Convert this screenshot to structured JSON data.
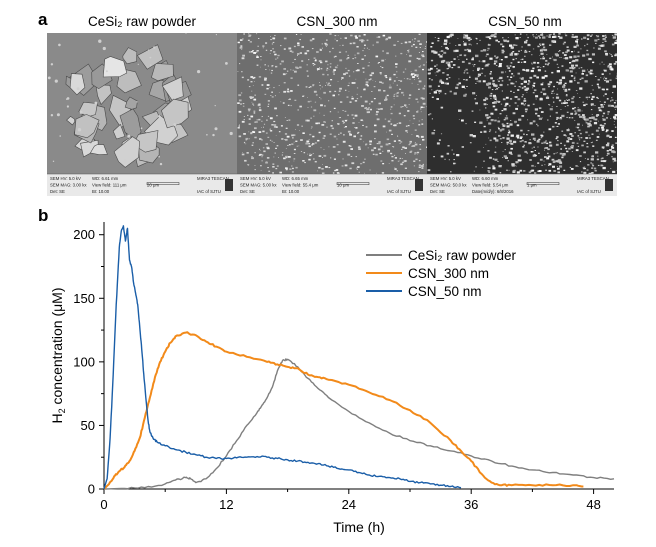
{
  "panel_a": {
    "label": "a",
    "images": [
      {
        "title": "CeSi₂ raw powder",
        "info_rows": [
          [
            "SEM HV: 5.0 kV",
            "WD: 6.61 mm",
            "",
            "MIRA3 TESCAN"
          ],
          [
            "SEM MAG: 3.00 kx",
            "View field: 111 μm",
            "20 μm",
            ""
          ],
          [
            "Det: SE",
            "BI: 10.00",
            "",
            "IAC of SJTU"
          ]
        ]
      },
      {
        "title": "CSN_300 nm",
        "info_rows": [
          [
            "SEM HV: 5.0 kV",
            "WD: 6.65 mm",
            "",
            "MIRA3 TESCAN"
          ],
          [
            "SEM MAG: 5.00 kx",
            "View field: 55.4 μm",
            "10 μm",
            ""
          ],
          [
            "Det: SE",
            "BI: 10.00",
            "",
            "IAC of SJTU"
          ]
        ]
      },
      {
        "title": "CSN_50 nm",
        "info_rows": [
          [
            "SEM HV: 5.0 kV",
            "WD: 6.60 mm",
            "",
            "MIRA3 TESCAN"
          ],
          [
            "SEM MAG: 50.0 kx",
            "View field: 5.54 μm",
            "1 μm",
            ""
          ],
          [
            "Det: SE",
            "Date(m/d/y): 6/8/2016",
            "",
            "IAC of SJTU"
          ]
        ]
      }
    ]
  },
  "panel_b": {
    "label": "b"
  },
  "chart_data": {
    "type": "line",
    "xlabel": "Time (h)",
    "ylabel_parts": [
      "H",
      "2",
      " concentration (μM)"
    ],
    "xlim": [
      0,
      50
    ],
    "ylim": [
      0,
      210
    ],
    "xticks": [
      0,
      12,
      24,
      36,
      48
    ],
    "yticks": [
      0,
      50,
      100,
      150,
      200
    ],
    "legend_position": "top-right",
    "grid": false,
    "series": [
      {
        "name": "CeSi₂ raw powder",
        "color": "#7f7f7f",
        "points": [
          [
            0,
            0
          ],
          [
            2,
            0.5
          ],
          [
            4,
            1
          ],
          [
            6,
            4
          ],
          [
            7,
            7
          ],
          [
            8,
            9
          ],
          [
            8.5,
            8
          ],
          [
            9,
            5
          ],
          [
            10,
            8
          ],
          [
            11,
            16
          ],
          [
            12,
            26
          ],
          [
            13,
            38
          ],
          [
            14,
            50
          ],
          [
            15,
            60
          ],
          [
            15.5,
            66
          ],
          [
            16,
            72
          ],
          [
            16.5,
            80
          ],
          [
            17,
            93
          ],
          [
            17.5,
            101
          ],
          [
            18,
            102
          ],
          [
            19,
            96
          ],
          [
            20,
            87
          ],
          [
            21,
            79
          ],
          [
            22,
            72
          ],
          [
            24,
            61
          ],
          [
            26,
            52
          ],
          [
            28,
            44
          ],
          [
            30,
            38
          ],
          [
            32,
            34
          ],
          [
            34,
            30
          ],
          [
            36,
            26
          ],
          [
            38,
            22
          ],
          [
            40,
            18
          ],
          [
            42,
            15
          ],
          [
            44,
            13
          ],
          [
            46,
            11
          ],
          [
            48,
            9
          ],
          [
            50,
            8
          ]
        ]
      },
      {
        "name": "CSN_300 nm",
        "color": "#f28a1a",
        "points": [
          [
            0,
            0
          ],
          [
            0.5,
            4
          ],
          [
            1,
            10
          ],
          [
            1.5,
            14
          ],
          [
            2,
            17
          ],
          [
            2.5,
            22
          ],
          [
            3,
            30
          ],
          [
            3.5,
            40
          ],
          [
            4,
            56
          ],
          [
            4.5,
            72
          ],
          [
            5,
            88
          ],
          [
            5.5,
            100
          ],
          [
            6,
            108
          ],
          [
            6.5,
            115
          ],
          [
            7,
            120
          ],
          [
            8,
            123
          ],
          [
            9,
            121
          ],
          [
            10,
            116
          ],
          [
            11,
            112
          ],
          [
            12,
            108
          ],
          [
            14,
            104
          ],
          [
            16,
            100
          ],
          [
            17,
            98
          ],
          [
            18,
            96
          ],
          [
            19,
            95
          ],
          [
            20,
            90
          ],
          [
            21,
            88
          ],
          [
            22,
            86
          ],
          [
            24,
            82
          ],
          [
            26,
            76
          ],
          [
            28,
            70
          ],
          [
            30,
            62
          ],
          [
            32,
            52
          ],
          [
            34,
            38
          ],
          [
            35,
            30
          ],
          [
            36,
            22
          ],
          [
            37,
            12
          ],
          [
            38,
            5
          ],
          [
            39,
            3
          ],
          [
            40,
            3
          ],
          [
            42,
            3
          ],
          [
            44,
            3
          ],
          [
            46,
            3
          ],
          [
            47,
            2
          ]
        ]
      },
      {
        "name": "CSN_50 nm",
        "color": "#1a5ea8",
        "points": [
          [
            0,
            0
          ],
          [
            0.3,
            8
          ],
          [
            0.6,
            40
          ],
          [
            0.9,
            90
          ],
          [
            1.2,
            145
          ],
          [
            1.5,
            190
          ],
          [
            1.7,
            203
          ],
          [
            1.9,
            207
          ],
          [
            2.1,
            195
          ],
          [
            2.3,
            205
          ],
          [
            2.5,
            180
          ],
          [
            2.7,
            175
          ],
          [
            2.9,
            162
          ],
          [
            3.1,
            154
          ],
          [
            3.3,
            145
          ],
          [
            3.5,
            128
          ],
          [
            3.7,
            110
          ],
          [
            3.9,
            90
          ],
          [
            4.1,
            72
          ],
          [
            4.3,
            55
          ],
          [
            4.5,
            45
          ],
          [
            4.8,
            40
          ],
          [
            5.2,
            37
          ],
          [
            6,
            34
          ],
          [
            7,
            31
          ],
          [
            8,
            29
          ],
          [
            9,
            27
          ],
          [
            10,
            25
          ],
          [
            11,
            24
          ],
          [
            12,
            24
          ],
          [
            13,
            24.5
          ],
          [
            14,
            25
          ],
          [
            15,
            25.5
          ],
          [
            16,
            25
          ],
          [
            17,
            24
          ],
          [
            18,
            23
          ],
          [
            19,
            22
          ],
          [
            20,
            21
          ],
          [
            21,
            20
          ],
          [
            22,
            18
          ],
          [
            23,
            16
          ],
          [
            24,
            15
          ],
          [
            25,
            13
          ],
          [
            26,
            11
          ],
          [
            27,
            10
          ],
          [
            28,
            9
          ],
          [
            29,
            8
          ],
          [
            30,
            6
          ],
          [
            31,
            5
          ],
          [
            32,
            4
          ],
          [
            33,
            3
          ],
          [
            34,
            2
          ],
          [
            35,
            1
          ]
        ]
      }
    ]
  }
}
